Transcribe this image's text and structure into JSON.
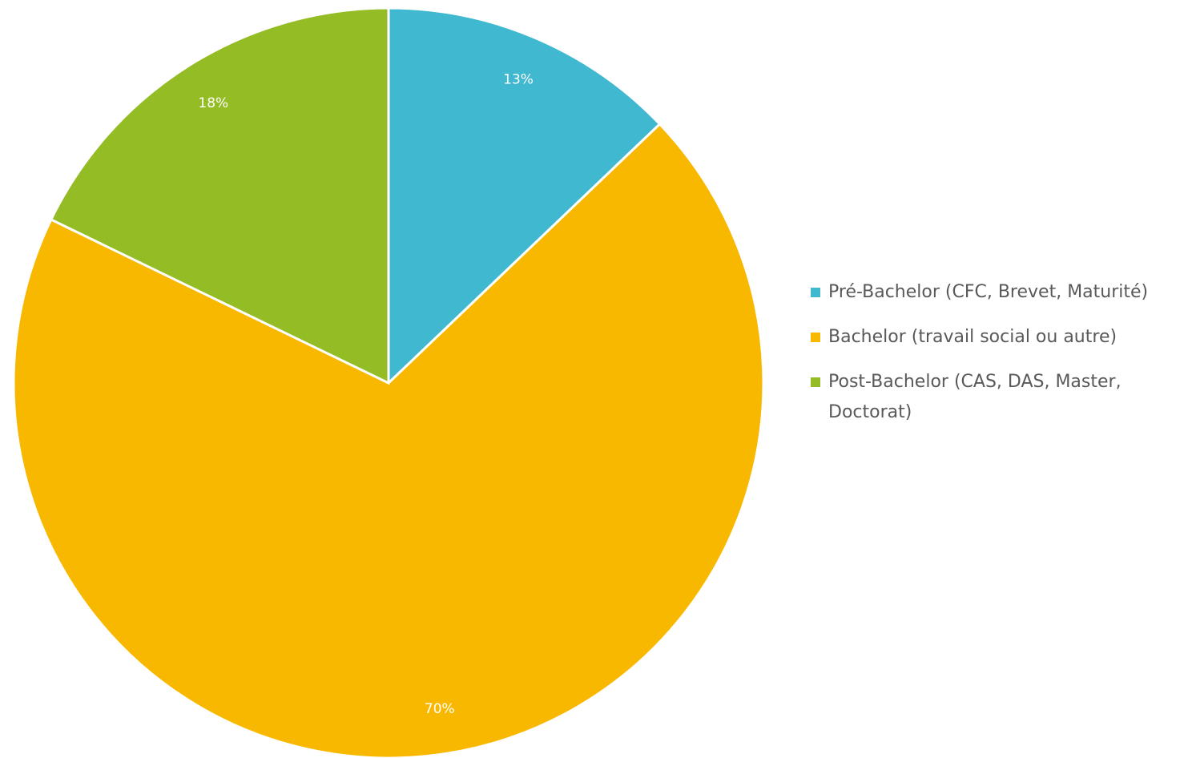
{
  "chart_data": {
    "type": "pie",
    "categories": [
      "Pré-Bachelor (CFC, Brevet, Maturité)",
      "Bachelor (travail social ou autre)",
      "Post-Bachelor (CAS, DAS, Master, Doctorat)"
    ],
    "values": [
      13,
      70,
      18
    ],
    "value_labels": [
      "13%",
      "70%",
      "18%"
    ],
    "colors": [
      "#40b8d0",
      "#f9b800",
      "#93bc25"
    ],
    "legend": "right"
  }
}
